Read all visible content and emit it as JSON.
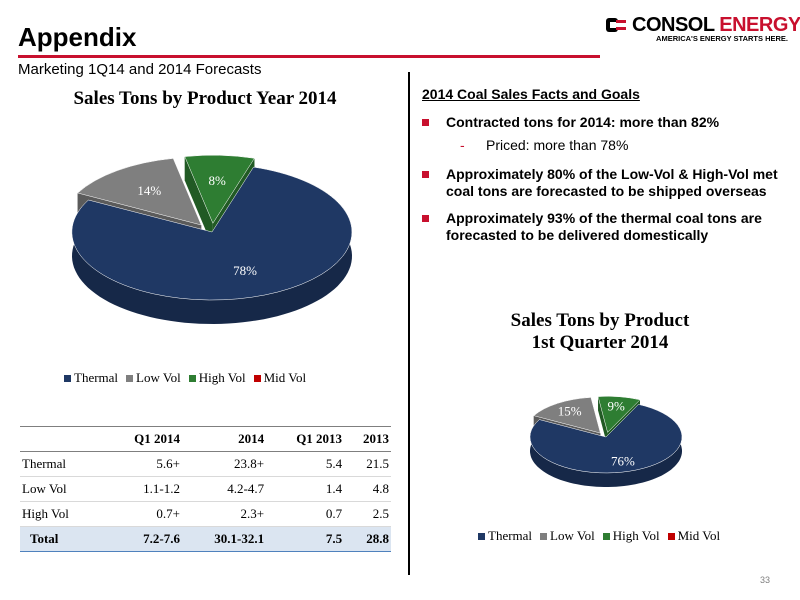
{
  "page": {
    "title": "Appendix",
    "subtitle": "Marketing 1Q14 and 2014 Forecasts",
    "page_number": "33"
  },
  "logo": {
    "name_part1": "CONSOL",
    "name_part2": "ENERGY",
    "tagline": "AMERICA'S ENERGY STARTS HERE.",
    "colors": {
      "dark": "#000000",
      "accent": "#c8102e"
    }
  },
  "facts": {
    "heading": "2014 Coal Sales Facts and Goals",
    "bullets": [
      {
        "text": "Contracted tons for 2014: more than 82%",
        "sub": "Priced: more than 78%"
      },
      {
        "text": "Approximately 80% of the Low-Vol & High-Vol met coal tons are forecasted to be shipped overseas"
      },
      {
        "text": "Approximately 93% of the thermal coal tons are forecasted to be delivered domestically"
      }
    ]
  },
  "colors": {
    "thermal": "#1f3864",
    "low_vol": "#7f7f7f",
    "high_vol": "#2e7d32",
    "mid_vol": "#c00000",
    "bullet": "#c8102e"
  },
  "chart_data": [
    {
      "type": "pie",
      "title": "Sales Tons by Product Year 2014",
      "categories": [
        "Thermal",
        "Low Vol",
        "High Vol",
        "Mid Vol"
      ],
      "values": [
        78,
        14,
        8,
        0
      ],
      "labels": [
        "78%",
        "14%",
        "8%",
        ""
      ],
      "legend_position": "bottom"
    },
    {
      "type": "pie",
      "title_line1": "Sales Tons by Product",
      "title_line2": "1st Quarter 2014",
      "categories": [
        "Thermal",
        "Low Vol",
        "High Vol",
        "Mid Vol"
      ],
      "values": [
        76,
        15,
        9,
        0
      ],
      "labels": [
        "76%",
        "15%",
        "9%",
        ""
      ],
      "legend_position": "bottom"
    },
    {
      "type": "table",
      "columns": [
        "",
        "Q1 2014",
        "2014",
        "Q1 2013",
        "2013"
      ],
      "rows": [
        [
          "Thermal",
          "5.6+",
          "23.8+",
          "5.4",
          "21.5"
        ],
        [
          "Low Vol",
          "1.1-1.2",
          "4.2-4.7",
          "1.4",
          "4.8"
        ],
        [
          "High Vol",
          "0.7+",
          "2.3+",
          "0.7",
          "2.5"
        ]
      ],
      "total": [
        "Total",
        "7.2-7.6",
        "30.1-32.1",
        "7.5",
        "28.8"
      ]
    }
  ]
}
